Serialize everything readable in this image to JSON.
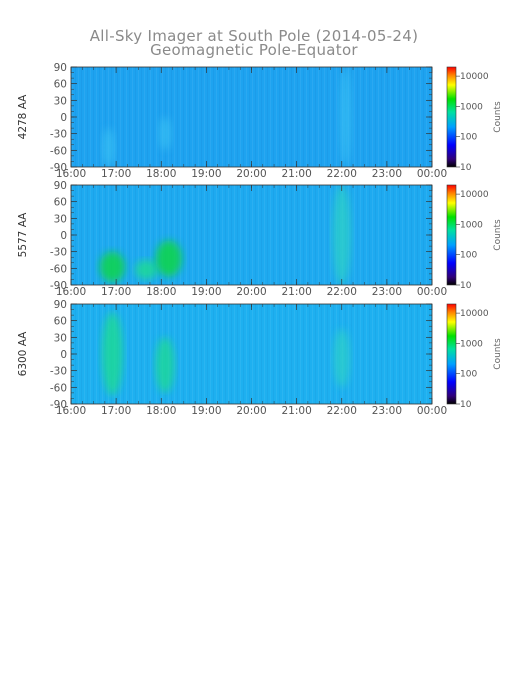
{
  "chart_data": {
    "type": "heatmap",
    "title": "All-Sky Imager at South Pole (2014-05-24)",
    "subtitle": "Geomagnetic Pole-Equator",
    "x_ticks": [
      "16:00",
      "17:00",
      "18:00",
      "19:00",
      "20:00",
      "21:00",
      "22:00",
      "23:00",
      "00:00"
    ],
    "y_ticks": [
      "90",
      "60",
      "30",
      "0",
      "-30",
      "-60",
      "-90"
    ],
    "ylim": [
      -90,
      90
    ],
    "colorbar": {
      "label": "Counts",
      "scale": "log",
      "range": [
        10,
        20000
      ],
      "ticks": [
        "10000",
        "1000",
        "100",
        "10"
      ]
    },
    "panels": [
      {
        "ylabel": "4278 AA",
        "background": "#1ea3f0",
        "features": [
          {
            "time": "16:50",
            "lat_from": -90,
            "lat_to": -20,
            "level": 0.15
          },
          {
            "time": "18:05",
            "lat_from": -60,
            "lat_to": 0,
            "level": 0.15
          },
          {
            "time": "22:05",
            "lat_from": -90,
            "lat_to": 90,
            "level": 0.1
          }
        ]
      },
      {
        "ylabel": "5577 AA",
        "background": "#1eaaf0",
        "features": [
          {
            "time": "16:55",
            "lat_from": -85,
            "lat_to": -30,
            "level": 0.85
          },
          {
            "time": "17:40",
            "lat_from": -80,
            "lat_to": -45,
            "level": 0.7
          },
          {
            "time": "18:10",
            "lat_from": -75,
            "lat_to": -10,
            "level": 0.9
          },
          {
            "time": "22:00",
            "lat_from": -90,
            "lat_to": 90,
            "level": 0.45
          }
        ]
      },
      {
        "ylabel": "6300 AA",
        "background": "#1eb0f0",
        "features": [
          {
            "time": "16:55",
            "lat_from": -75,
            "lat_to": 75,
            "level": 0.6
          },
          {
            "time": "18:05",
            "lat_from": -70,
            "lat_to": 30,
            "level": 0.5
          },
          {
            "time": "22:00",
            "lat_from": -60,
            "lat_to": 45,
            "level": 0.35
          }
        ]
      }
    ]
  }
}
